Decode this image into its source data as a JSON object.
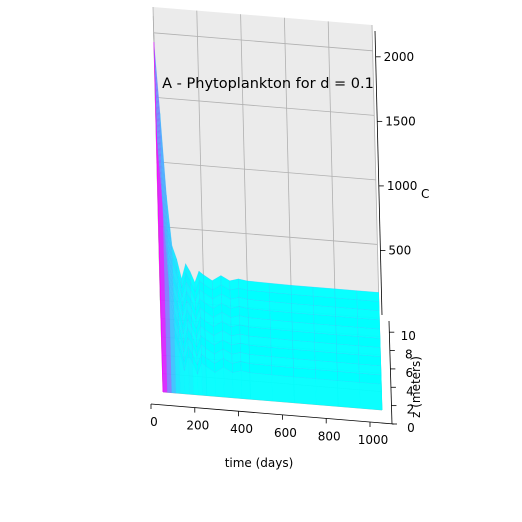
{
  "chart_data": {
    "type": "surface3d",
    "title": "A - Phytoplankton for d = 0.1",
    "xlabel": "time (days)",
    "ylabel": "z (meters)",
    "zlabel": "C",
    "x_ticks": [
      "0",
      "200",
      "400",
      "600",
      "800",
      "1000"
    ],
    "y_ticks": [
      "0",
      "2",
      "4",
      "6",
      "8",
      "10"
    ],
    "z_ticks": [
      "500",
      "1000",
      "1500",
      "2000"
    ],
    "xlim": [
      0,
      1000
    ],
    "ylim": [
      0,
      11
    ],
    "zlim": [
      0,
      2200
    ],
    "grid": true,
    "colormap": {
      "low": "#00ffff",
      "high": "#ff00ff"
    },
    "steady_value": 200,
    "series": [
      {
        "x": [
          0,
          20,
          40,
          60,
          80,
          100,
          120,
          140,
          160,
          180,
          200,
          240,
          280,
          320,
          360,
          400,
          500,
          600,
          700,
          800,
          900,
          1000
        ],
        "values": [
          2000,
          1450,
          820,
          430,
          330,
          180,
          300,
          240,
          160,
          250,
          225,
          185,
          230,
          195,
          215,
          205,
          202,
          200,
          200,
          200,
          200,
          200
        ]
      }
    ]
  }
}
